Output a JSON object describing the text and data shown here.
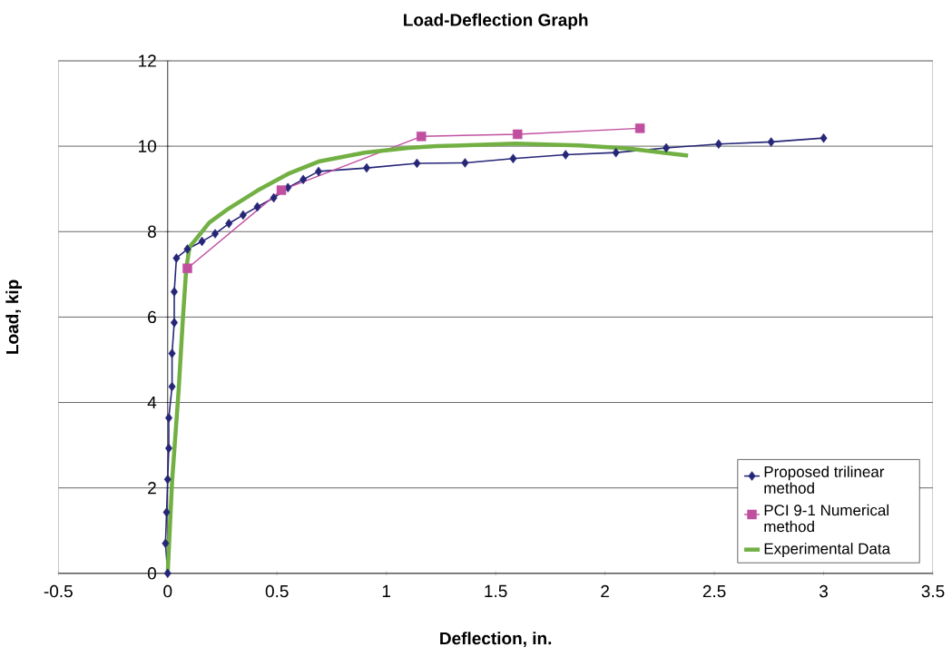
{
  "chart_data": {
    "type": "line",
    "title": "Load-Deflection Graph",
    "xlabel": "Deflection, in.",
    "ylabel": "Load, kip",
    "xlim": [
      -0.5,
      3.5
    ],
    "xticks": [
      -0.5,
      0,
      0.5,
      1,
      1.5,
      2,
      2.5,
      3,
      3.5
    ],
    "ylim": [
      0,
      12
    ],
    "yticks": [
      0,
      2,
      4,
      6,
      8,
      10,
      12
    ],
    "grid": "y",
    "legend": "bottom right",
    "series": [
      {
        "name": "Proposed trilinear method",
        "color": "#262678",
        "marker": "diamond",
        "x": [
          0,
          -0.01,
          -0.005,
          0,
          0.005,
          0.005,
          0.02,
          0.02,
          0.03,
          0.03,
          0.04,
          0.09,
          0.157,
          0.217,
          0.28,
          0.345,
          0.41,
          0.485,
          0.55,
          0.62,
          0.69,
          0.91,
          1.14,
          1.36,
          1.58,
          1.82,
          2.05,
          2.28,
          2.52,
          2.76,
          3.0
        ],
        "values": [
          0,
          0.7,
          1.43,
          2.2,
          2.93,
          3.64,
          4.37,
          5.15,
          5.87,
          6.59,
          7.38,
          7.59,
          7.77,
          7.95,
          8.19,
          8.39,
          8.58,
          8.79,
          9.03,
          9.22,
          9.41,
          9.49,
          9.6,
          9.61,
          9.71,
          9.8,
          9.85,
          9.96,
          10.05,
          10.1,
          10.19
        ]
      },
      {
        "name": "PCI 9-1 Numerical method",
        "color": "#c04fa0",
        "marker": "square",
        "x": [
          0.09,
          0.52,
          1.16,
          1.6,
          2.16
        ],
        "values": [
          7.14,
          8.97,
          10.23,
          10.28,
          10.42
        ]
      },
      {
        "name": "Experimental Data",
        "color": "#72b043",
        "marker": "none",
        "x": [
          0,
          0.02,
          0.05,
          0.07,
          0.085,
          0.1,
          0.14,
          0.19,
          0.276,
          0.41,
          0.55,
          0.69,
          0.9,
          1.1,
          1.23,
          1.59,
          1.88,
          2.1,
          2.38
        ],
        "values": [
          0,
          2.14,
          4.28,
          6.0,
          7.14,
          7.64,
          7.89,
          8.21,
          8.53,
          8.96,
          9.35,
          9.64,
          9.85,
          9.96,
          10.0,
          10.06,
          10.02,
          9.95,
          9.78
        ]
      }
    ]
  }
}
